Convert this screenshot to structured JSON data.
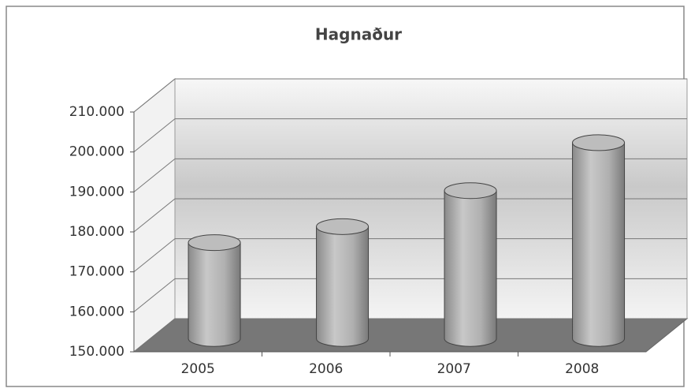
{
  "chart_data": {
    "type": "bar",
    "title": "Hagnaður",
    "categories": [
      "2005",
      "2006",
      "2007",
      "2008"
    ],
    "values": [
      174000,
      178000,
      187000,
      199000
    ],
    "color": "#a8a8a8",
    "ylim": [
      150000,
      210000
    ],
    "yticks": [
      {
        "value": 150000,
        "label": "150.000"
      },
      {
        "value": 160000,
        "label": "160.000"
      },
      {
        "value": 170000,
        "label": "170.000"
      },
      {
        "value": 180000,
        "label": "180.000"
      },
      {
        "value": 190000,
        "label": "190.000"
      },
      {
        "value": 200000,
        "label": "200.000"
      },
      {
        "value": 210000,
        "label": "210.000"
      }
    ],
    "grid": true
  }
}
